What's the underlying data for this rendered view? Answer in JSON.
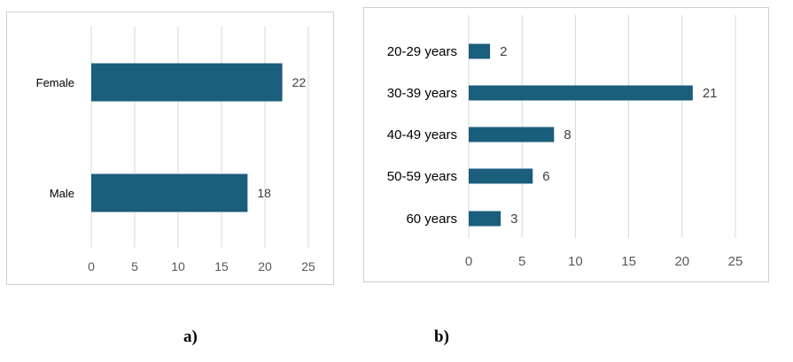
{
  "chart_data": [
    {
      "type": "bar",
      "orientation": "horizontal",
      "categories": [
        "Female",
        "Male"
      ],
      "values": [
        22,
        18
      ],
      "value_labels": [
        "22",
        "18"
      ],
      "xticks": [
        "0",
        "5",
        "10",
        "15",
        "20",
        "25"
      ],
      "xlim": [
        0,
        25
      ],
      "grid": "vertical",
      "color": "#1b5e7b"
    },
    {
      "type": "bar",
      "orientation": "horizontal",
      "categories": [
        "20-29 years",
        "30-39 years",
        "40-49 years",
        "50-59 years",
        "60 years"
      ],
      "values": [
        2,
        21,
        8,
        6,
        3
      ],
      "value_labels": [
        "2",
        "21",
        "8",
        "6",
        "3"
      ],
      "xticks": [
        "0",
        "5",
        "10",
        "15",
        "20",
        "25"
      ],
      "xlim": [
        0,
        25
      ],
      "grid": "vertical",
      "color": "#1b5e7b"
    }
  ],
  "captions": {
    "a": "a)",
    "b": "b)"
  }
}
